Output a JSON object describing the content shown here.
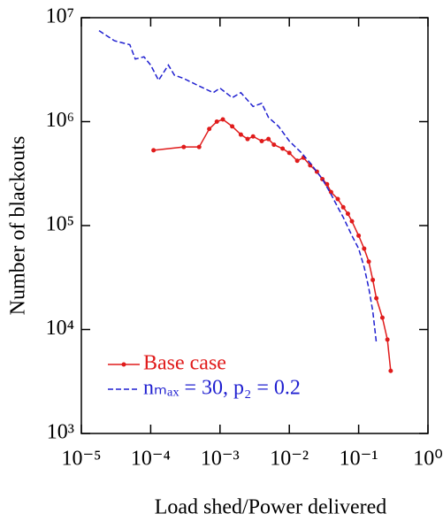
{
  "chart_data": {
    "type": "line",
    "x_label": "Load shed/Power delivered",
    "y_label": "Number of blackouts",
    "xscale": "log",
    "yscale": "log",
    "xlim": [
      1e-05,
      1
    ],
    "ylim": [
      1000,
      10000000
    ],
    "xticks": [
      {
        "value": 1e-05,
        "label": "10⁻⁵"
      },
      {
        "value": 0.0001,
        "label": "10⁻⁴"
      },
      {
        "value": 0.001,
        "label": "10⁻³"
      },
      {
        "value": 0.01,
        "label": "10⁻²"
      },
      {
        "value": 0.1,
        "label": "10⁻¹"
      },
      {
        "value": 1,
        "label": "10⁰"
      }
    ],
    "yticks": [
      {
        "value": 1000,
        "label": "10³"
      },
      {
        "value": 10000,
        "label": "10⁴"
      },
      {
        "value": 100000,
        "label": "10⁵"
      },
      {
        "value": 1000000,
        "label": "10⁶"
      },
      {
        "value": 10000000,
        "label": "10⁷"
      }
    ],
    "legend": "lower left",
    "series": [
      {
        "name": "Base case",
        "color": "#e01b1b",
        "dash": false,
        "markers": true,
        "x": [
          0.00011,
          0.0003,
          0.0005,
          0.0007,
          0.0009,
          0.0011,
          0.0015,
          0.002,
          0.0025,
          0.003,
          0.004,
          0.005,
          0.006,
          0.008,
          0.01,
          0.013,
          0.016,
          0.02,
          0.025,
          0.03,
          0.035,
          0.04,
          0.05,
          0.06,
          0.07,
          0.08,
          0.1,
          0.12,
          0.14,
          0.16,
          0.18,
          0.22,
          0.26,
          0.29
        ],
        "values": [
          530000,
          570000,
          570000,
          850000,
          1000000,
          1050000,
          900000,
          750000,
          680000,
          720000,
          650000,
          680000,
          600000,
          550000,
          500000,
          420000,
          450000,
          380000,
          330000,
          280000,
          250000,
          210000,
          180000,
          150000,
          130000,
          110000,
          80000,
          60000,
          45000,
          30000,
          20000,
          13000,
          8000,
          4000
        ]
      },
      {
        "name": "nₘₐₓ = 30, p₂ = 0.2",
        "color": "#1f1fd0",
        "dash": true,
        "markers": false,
        "x": [
          1.8e-05,
          3e-05,
          5e-05,
          6e-05,
          8e-05,
          0.0001,
          0.00013,
          0.00018,
          0.00022,
          0.0003,
          0.0005,
          0.0008,
          0.001,
          0.0015,
          0.002,
          0.003,
          0.004,
          0.005,
          0.007,
          0.01,
          0.015,
          0.02,
          0.03,
          0.04,
          0.05,
          0.06,
          0.08,
          0.1,
          0.12,
          0.14,
          0.16,
          0.18
        ],
        "values": [
          7500000,
          6000000,
          5500000,
          4000000,
          4200000,
          3500000,
          2500000,
          3500000,
          2800000,
          2600000,
          2200000,
          1900000,
          2100000,
          1700000,
          1900000,
          1400000,
          1500000,
          1100000,
          900000,
          650000,
          500000,
          400000,
          280000,
          200000,
          150000,
          120000,
          80000,
          60000,
          40000,
          25000,
          15000,
          7500
        ]
      }
    ]
  }
}
